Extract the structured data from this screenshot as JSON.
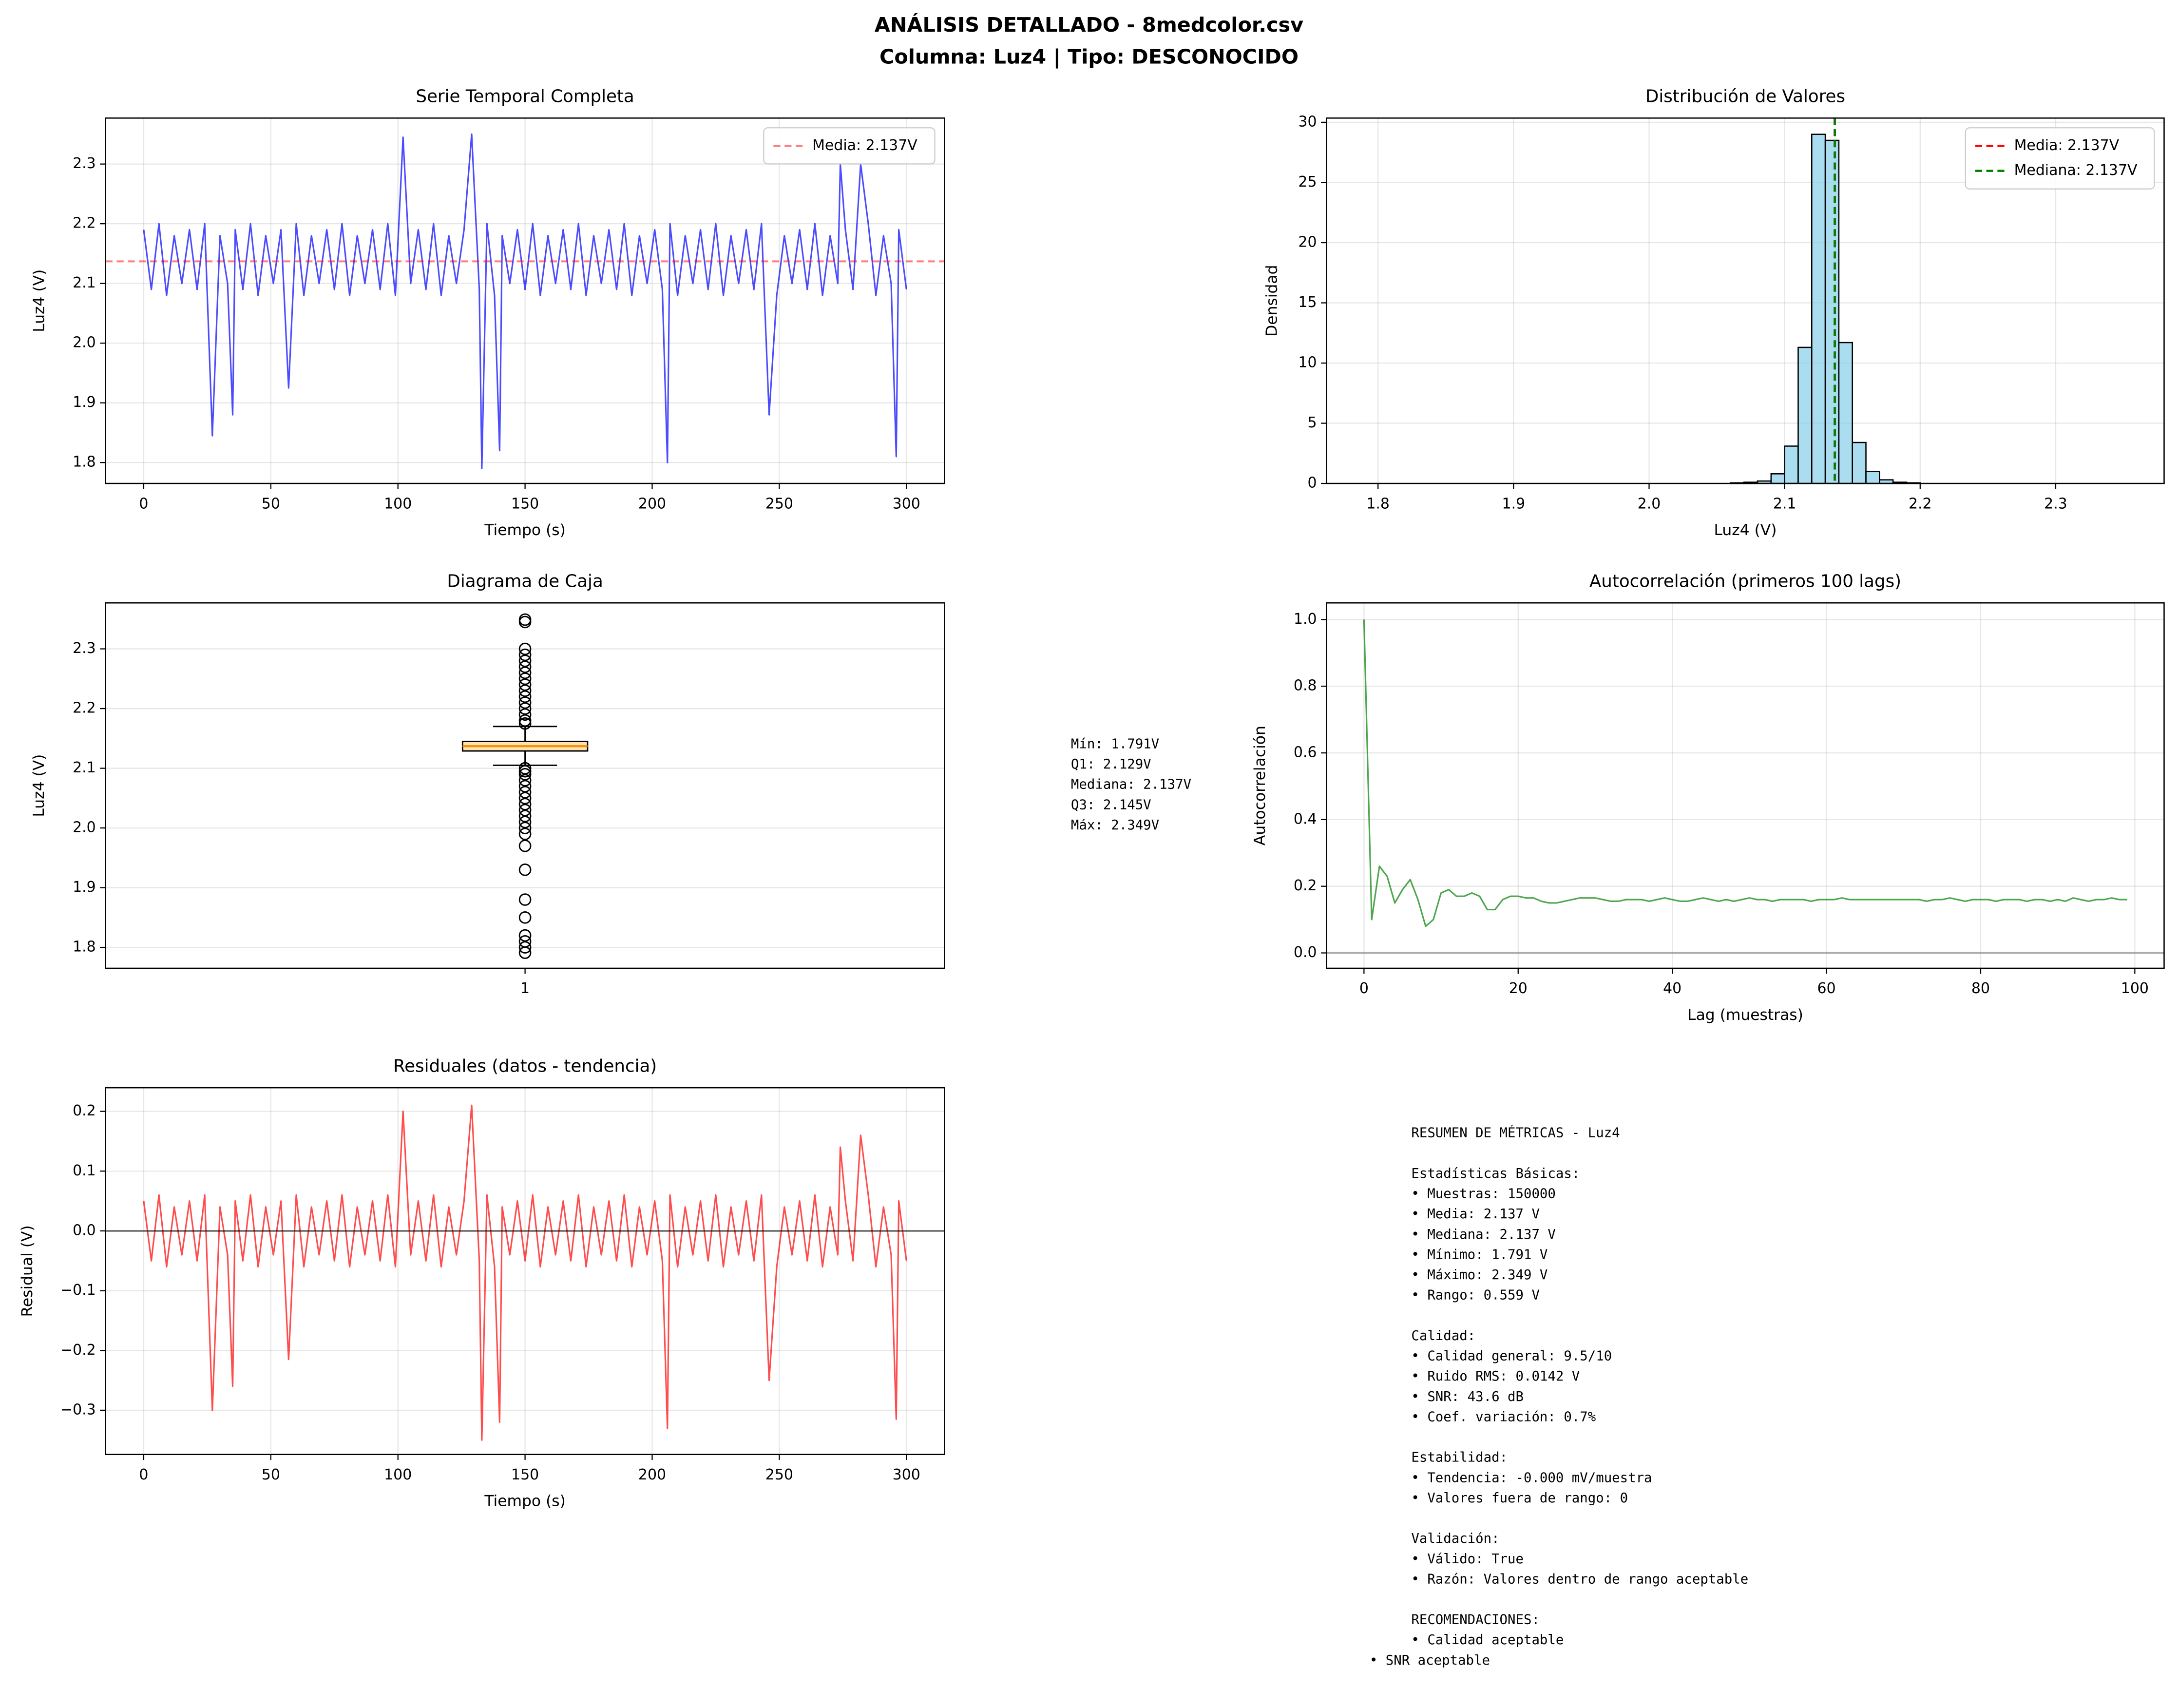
{
  "title": [
    "ANÁLISIS DETALLADO - 8medcolor.csv",
    "Columna: Luz4 | Tipo: DESCONOCIDO"
  ],
  "chart_data": [
    {
      "type": "line",
      "title": "Serie Temporal Completa",
      "x_label": "Tiempo (s)",
      "y_label": "Luz4 (V)",
      "color": "#0000ff",
      "alpha": 0.7,
      "grid": true,
      "legend": "upper right",
      "xlim": [
        -15,
        315
      ],
      "ylim": [
        1.765,
        2.377
      ],
      "xticks": [
        0,
        50,
        100,
        150,
        200,
        250,
        300
      ],
      "yticks": [
        1.8,
        1.9,
        {
          "value": 2.0,
          "label": "2.0"
        },
        2.1,
        2.2,
        2.3
      ],
      "hlines": [
        {
          "value": 2.137,
          "color": "#ff0000",
          "alpha": 0.5,
          "dashed": true,
          "name": "Media: 2.137V"
        }
      ],
      "x": [
        0,
        3,
        6,
        9,
        12,
        15,
        18,
        21,
        24,
        27,
        30,
        33,
        35,
        36,
        39,
        42,
        45,
        48,
        51,
        54,
        57,
        60,
        63,
        66,
        69,
        72,
        75,
        78,
        81,
        84,
        87,
        90,
        93,
        96,
        99,
        102,
        105,
        108,
        111,
        114,
        117,
        120,
        123,
        126,
        129,
        132,
        133,
        135,
        138,
        140,
        141,
        144,
        147,
        150,
        153,
        156,
        159,
        162,
        165,
        168,
        171,
        174,
        177,
        180,
        183,
        186,
        189,
        192,
        195,
        198,
        201,
        204,
        206,
        207,
        210,
        213,
        216,
        219,
        222,
        225,
        228,
        231,
        234,
        237,
        240,
        243,
        246,
        249,
        252,
        255,
        258,
        261,
        264,
        267,
        270,
        273,
        274,
        276,
        279,
        282,
        285,
        288,
        291,
        294,
        296,
        297,
        300
      ],
      "values": [
        2.19,
        2.09,
        2.2,
        2.08,
        2.18,
        2.1,
        2.19,
        2.09,
        2.2,
        1.845,
        2.18,
        2.1,
        1.88,
        2.19,
        2.09,
        2.2,
        2.08,
        2.18,
        2.1,
        2.19,
        1.925,
        2.2,
        2.08,
        2.18,
        2.1,
        2.19,
        2.09,
        2.2,
        2.08,
        2.18,
        2.1,
        2.19,
        2.09,
        2.2,
        2.08,
        2.345,
        2.1,
        2.19,
        2.09,
        2.2,
        2.08,
        2.18,
        2.1,
        2.19,
        2.35,
        2.09,
        1.79,
        2.2,
        2.08,
        1.82,
        2.18,
        2.1,
        2.19,
        2.09,
        2.2,
        2.08,
        2.18,
        2.1,
        2.19,
        2.09,
        2.2,
        2.08,
        2.18,
        2.1,
        2.19,
        2.09,
        2.2,
        2.08,
        2.18,
        2.1,
        2.19,
        2.09,
        1.8,
        2.2,
        2.08,
        2.18,
        2.1,
        2.19,
        2.09,
        2.2,
        2.08,
        2.18,
        2.1,
        2.19,
        2.09,
        2.2,
        1.88,
        2.08,
        2.18,
        2.1,
        2.19,
        2.09,
        2.2,
        2.08,
        2.18,
        2.1,
        2.3,
        2.19,
        2.09,
        2.3,
        2.2,
        2.08,
        2.18,
        2.1,
        1.81,
        2.19,
        2.09
      ]
    },
    {
      "type": "histogram",
      "title": "Distribución de Valores",
      "x_label": "Luz4 (V)",
      "y_label": "Densidad",
      "color": "#87ceeb",
      "alpha": 0.7,
      "grid": true,
      "legend": "upper right",
      "xlim": [
        1.762,
        2.38
      ],
      "ylim": [
        0,
        30.35
      ],
      "xticks": [
        1.8,
        1.9,
        {
          "value": 2.0,
          "label": "2.0"
        },
        2.1,
        2.2,
        2.3
      ],
      "yticks": [
        0,
        5,
        10,
        15,
        20,
        25,
        30
      ],
      "bins": [
        2.06,
        2.07,
        2.08,
        2.09,
        2.1,
        2.11,
        2.12,
        2.13,
        2.14,
        2.15,
        2.16,
        2.17,
        2.18,
        2.19,
        2.2
      ],
      "values": [
        0.05,
        0.1,
        0.2,
        0.8,
        3.1,
        11.3,
        29,
        28.5,
        11.7,
        3.4,
        1.0,
        0.3,
        0.1,
        0.05
      ],
      "vlines": [
        {
          "value": 2.137,
          "color": "#ff0000",
          "dashed": true,
          "name": "Media: 2.137V"
        },
        {
          "value": 2.137,
          "color": "#008000",
          "dashed": true,
          "name": "Mediana: 2.137V"
        }
      ]
    },
    {
      "type": "box",
      "title": "Diagrama de Caja",
      "y_label": "Luz4 (V)",
      "grid": true,
      "ylim": [
        1.765,
        2.377
      ],
      "yticks": [
        1.8,
        1.9,
        {
          "value": 2.0,
          "label": "2.0"
        },
        2.1,
        2.2,
        2.3
      ],
      "categories": [
        "1"
      ],
      "q1": 2.129,
      "median": 2.137,
      "q3": 2.145,
      "whisker_low": 2.105,
      "whisker_high": 2.17,
      "color": "#ffe4b5",
      "median_color": "#ff8c00",
      "outliers": [
        2.349,
        2.345,
        2.3,
        2.29,
        2.28,
        2.27,
        2.26,
        2.25,
        2.24,
        2.23,
        2.22,
        2.21,
        2.2,
        2.19,
        2.18,
        2.175,
        2.1,
        2.095,
        2.09,
        2.08,
        2.07,
        2.06,
        2.05,
        2.04,
        2.03,
        2.02,
        2.01,
        2.0,
        1.99,
        1.97,
        1.93,
        1.88,
        1.85,
        1.82,
        1.81,
        1.8,
        1.791
      ]
    },
    {
      "type": "line",
      "title": "Autocorrelación (primeros 100 lags)",
      "x_label": "Lag (muestras)",
      "y_label": "Autocorrelación",
      "color": "#008000",
      "alpha": 0.7,
      "grid": true,
      "xlim": [
        -4.86,
        103.8
      ],
      "ylim": [
        -0.046,
        1.05
      ],
      "xticks": [
        0,
        20,
        40,
        60,
        80,
        100
      ],
      "yticks": [
        {
          "value": 0.0,
          "label": "0.0"
        },
        0.2,
        0.4,
        0.6,
        0.8,
        {
          "value": 1.0,
          "label": "1.0"
        }
      ],
      "hlines": [
        {
          "value": 0,
          "color": "#808080",
          "alpha": 0.6
        }
      ],
      "x": [
        0,
        1,
        2,
        3,
        4,
        5,
        6,
        7,
        8,
        9,
        10,
        11,
        12,
        13,
        14,
        15,
        16,
        17,
        18,
        19,
        20,
        21,
        22,
        23,
        24,
        25,
        26,
        27,
        28,
        29,
        30,
        31,
        32,
        33,
        34,
        35,
        36,
        37,
        38,
        39,
        40,
        41,
        42,
        43,
        44,
        45,
        46,
        47,
        48,
        49,
        50,
        51,
        52,
        53,
        54,
        55,
        56,
        57,
        58,
        59,
        60,
        61,
        62,
        63,
        64,
        65,
        66,
        67,
        68,
        69,
        70,
        71,
        72,
        73,
        74,
        75,
        76,
        77,
        78,
        79,
        80,
        81,
        82,
        83,
        84,
        85,
        86,
        87,
        88,
        89,
        90,
        91,
        92,
        93,
        94,
        95,
        96,
        97,
        98,
        99
      ],
      "values": [
        1.0,
        0.1,
        0.26,
        0.23,
        0.15,
        0.19,
        0.22,
        0.16,
        0.08,
        0.1,
        0.18,
        0.19,
        0.17,
        0.17,
        0.18,
        0.17,
        0.13,
        0.13,
        0.16,
        0.17,
        0.17,
        0.165,
        0.165,
        0.155,
        0.15,
        0.15,
        0.155,
        0.16,
        0.165,
        0.165,
        0.165,
        0.16,
        0.155,
        0.155,
        0.16,
        0.16,
        0.16,
        0.155,
        0.16,
        0.165,
        0.16,
        0.155,
        0.155,
        0.16,
        0.165,
        0.16,
        0.155,
        0.16,
        0.155,
        0.16,
        0.165,
        0.16,
        0.16,
        0.155,
        0.16,
        0.16,
        0.16,
        0.16,
        0.155,
        0.16,
        0.16,
        0.16,
        0.165,
        0.16,
        0.16,
        0.16,
        0.16,
        0.16,
        0.16,
        0.16,
        0.16,
        0.16,
        0.16,
        0.155,
        0.16,
        0.16,
        0.165,
        0.16,
        0.155,
        0.16,
        0.16,
        0.16,
        0.155,
        0.16,
        0.16,
        0.16,
        0.155,
        0.16,
        0.16,
        0.155,
        0.16,
        0.155,
        0.165,
        0.16,
        0.155,
        0.16,
        0.16,
        0.165,
        0.16,
        0.16
      ]
    },
    {
      "type": "line",
      "title": "Residuales (datos - tendencia)",
      "x_label": "Tiempo (s)",
      "y_label": "Residual (V)",
      "color": "#ff0000",
      "alpha": 0.7,
      "grid": true,
      "xlim": [
        -15,
        315
      ],
      "ylim": [
        -0.374,
        0.2395
      ],
      "xticks": [
        0,
        50,
        100,
        150,
        200,
        250,
        300
      ],
      "yticks": [
        {
          "value": -0.3,
          "label": "−0.3"
        },
        {
          "value": -0.2,
          "label": "−0.2"
        },
        {
          "value": -0.1,
          "label": "−0.1"
        },
        {
          "value": 0.0,
          "label": "0.0"
        },
        0.1,
        0.2
      ],
      "hlines": [
        {
          "value": 0,
          "color": "#000000",
          "alpha": 0.5
        }
      ],
      "x": [
        0,
        3,
        6,
        9,
        12,
        15,
        18,
        21,
        24,
        27,
        30,
        33,
        35,
        36,
        39,
        42,
        45,
        48,
        51,
        54,
        57,
        60,
        63,
        66,
        69,
        72,
        75,
        78,
        81,
        84,
        87,
        90,
        93,
        96,
        99,
        102,
        105,
        108,
        111,
        114,
        117,
        120,
        123,
        126,
        129,
        132,
        133,
        135,
        138,
        140,
        141,
        144,
        147,
        150,
        153,
        156,
        159,
        162,
        165,
        168,
        171,
        174,
        177,
        180,
        183,
        186,
        189,
        192,
        195,
        198,
        201,
        204,
        206,
        207,
        210,
        213,
        216,
        219,
        222,
        225,
        228,
        231,
        234,
        237,
        240,
        243,
        246,
        249,
        252,
        255,
        258,
        261,
        264,
        267,
        270,
        273,
        274,
        276,
        279,
        282,
        285,
        288,
        291,
        294,
        296,
        297,
        300
      ],
      "values": [
        0.05,
        -0.05,
        0.06,
        -0.06,
        0.04,
        -0.04,
        0.05,
        -0.05,
        0.06,
        -0.3,
        0.04,
        -0.04,
        -0.26,
        0.05,
        -0.05,
        0.06,
        -0.06,
        0.04,
        -0.04,
        0.05,
        -0.215,
        0.06,
        -0.06,
        0.04,
        -0.04,
        0.05,
        -0.05,
        0.06,
        -0.06,
        0.04,
        -0.04,
        0.05,
        -0.05,
        0.06,
        -0.06,
        0.2,
        -0.04,
        0.05,
        -0.05,
        0.06,
        -0.06,
        0.04,
        -0.04,
        0.05,
        0.21,
        -0.05,
        -0.35,
        0.06,
        -0.06,
        -0.32,
        0.04,
        -0.04,
        0.05,
        -0.05,
        0.06,
        -0.06,
        0.04,
        -0.04,
        0.05,
        -0.05,
        0.06,
        -0.06,
        0.04,
        -0.04,
        0.05,
        -0.05,
        0.06,
        -0.06,
        0.04,
        -0.04,
        0.05,
        -0.05,
        -0.33,
        0.06,
        -0.06,
        0.04,
        -0.04,
        0.05,
        -0.05,
        0.06,
        -0.06,
        0.04,
        -0.04,
        0.05,
        -0.05,
        0.06,
        -0.25,
        -0.06,
        0.04,
        -0.04,
        0.05,
        -0.05,
        0.06,
        -0.06,
        0.04,
        -0.04,
        0.14,
        0.05,
        -0.05,
        0.16,
        0.06,
        -0.06,
        0.04,
        -0.04,
        -0.315,
        0.05,
        -0.05
      ]
    }
  ],
  "box_stats_text": [
    "Mín: 1.791V",
    "Q1: 2.129V",
    "Mediana: 2.137V",
    "Q3: 2.145V",
    "Máx: 2.349V"
  ],
  "summary": {
    "header": "RESUMEN DE MÉTRICAS - Luz4",
    "sections": [
      {
        "title": "Estadísticas Básicas:",
        "items": [
          "• Muestras: 150000",
          "• Media: 2.137 V",
          "• Mediana: 2.137 V",
          "• Mínimo: 1.791 V",
          "• Máximo: 2.349 V",
          "• Rango: 0.559 V"
        ]
      },
      {
        "title": "Calidad:",
        "items": [
          "• Calidad general: 9.5/10",
          "• Ruido RMS: 0.0142 V",
          "• SNR: 43.6 dB",
          "• Coef. variación: 0.7%"
        ]
      },
      {
        "title": "Estabilidad:",
        "items": [
          "• Tendencia: -0.000 mV/muestra",
          "• Valores fuera de rango: 0"
        ]
      },
      {
        "title": "Validación:",
        "items": [
          "• Válido: True",
          "• Razón: Valores dentro de rango aceptable"
        ]
      },
      {
        "title": "RECOMENDACIONES:",
        "items": [
          "• Calidad aceptable",
          "• SNR aceptable"
        ]
      }
    ]
  }
}
